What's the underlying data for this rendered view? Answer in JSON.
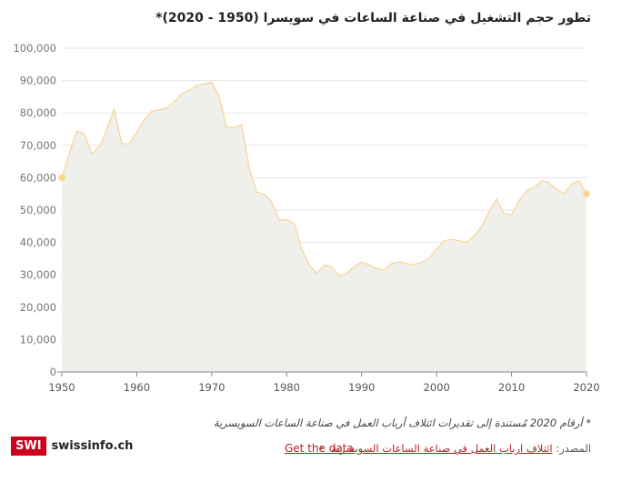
{
  "title": "تطور حجم التشغيل في صناعة الساعات في سويسرا (1950 - 2020)*",
  "chart_data": {
    "type": "area",
    "title": "تطور حجم التشغيل في صناعة الساعات في سويسرا (1950 - 2020)*",
    "xlabel": "",
    "ylabel": "",
    "xlim": [
      1950,
      2020
    ],
    "ylim": [
      0,
      100000
    ],
    "yticks": [
      "0",
      "10,000",
      "20,000",
      "30,000",
      "40,000",
      "50,000",
      "60,000",
      "70,000",
      "80,000",
      "90,000",
      "100,000"
    ],
    "xticks": [
      "1950",
      "1960",
      "1970",
      "1980",
      "1990",
      "2000",
      "2010",
      "2020"
    ],
    "grid": true,
    "colors": {
      "line": "#f8d79a",
      "fill": "#efefec",
      "highlight": "#f9d58e",
      "grid": "#e6e6e6",
      "axis": "#888888"
    },
    "x": [
      1950,
      1951,
      1952,
      1953,
      1954,
      1955,
      1956,
      1957,
      1958,
      1959,
      1960,
      1961,
      1962,
      1963,
      1964,
      1965,
      1966,
      1967,
      1968,
      1969,
      1970,
      1971,
      1972,
      1973,
      1974,
      1975,
      1976,
      1977,
      1978,
      1979,
      1980,
      1981,
      1982,
      1983,
      1984,
      1985,
      1986,
      1987,
      1988,
      1989,
      1990,
      1991,
      1992,
      1993,
      1994,
      1995,
      1996,
      1997,
      1998,
      1999,
      2000,
      2001,
      2002,
      2003,
      2004,
      2005,
      2006,
      2007,
      2008,
      2009,
      2010,
      2011,
      2012,
      2013,
      2014,
      2015,
      2016,
      2017,
      2018,
      2019,
      2020
    ],
    "values": [
      60000,
      67500,
      74500,
      73500,
      67500,
      69500,
      75000,
      81000,
      70500,
      70500,
      74000,
      78000,
      80500,
      81000,
      81500,
      83500,
      86000,
      87000,
      88500,
      89000,
      89500,
      85000,
      75500,
      75500,
      76500,
      63000,
      55500,
      55000,
      52500,
      47000,
      47000,
      46000,
      38000,
      33000,
      30500,
      33000,
      32500,
      29500,
      30500,
      32500,
      34000,
      33000,
      32000,
      31500,
      33500,
      34000,
      33500,
      33000,
      34000,
      35000,
      38000,
      40500,
      41000,
      40500,
      40000,
      42000,
      45000,
      49500,
      53500,
      49000,
      48500,
      53000,
      56000,
      57000,
      59000,
      58500,
      56500,
      55000,
      58000,
      59000,
      55000
    ]
  },
  "footnote": "* أرقام 2020 مُستندة إلى تقديرات ائتلاف أرباب العمل في صناعة الساعات السويسرية",
  "source": {
    "label": "المصدر:",
    "link_text": "ائتلاف ارباب العمل في صناعة الساعات السويسرية",
    "separator": "•",
    "get_data": "Get the data"
  },
  "logo": {
    "box": "SWI",
    "text": "swissinfo.ch"
  }
}
